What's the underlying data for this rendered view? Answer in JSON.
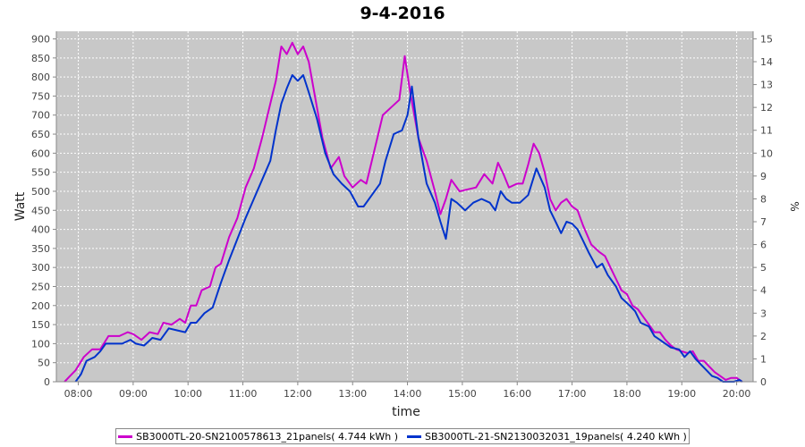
{
  "chart_data": {
    "type": "line",
    "title": "9-4-2016",
    "xlabel": "time",
    "ylabel": "Watt",
    "y2label": "%",
    "ylim": [
      0,
      920
    ],
    "y2lim": [
      0,
      15.33
    ],
    "xlim": [
      7.6,
      20.3
    ],
    "yticks": [
      0,
      50,
      100,
      150,
      200,
      250,
      300,
      350,
      400,
      450,
      500,
      550,
      600,
      650,
      700,
      750,
      800,
      850,
      900
    ],
    "y2ticks": [
      0,
      1,
      2,
      3,
      4,
      5,
      6,
      7,
      8,
      9,
      10,
      11,
      12,
      13,
      14,
      15
    ],
    "xticks": [
      8,
      9,
      10,
      11,
      12,
      13,
      14,
      15,
      16,
      17,
      18,
      19,
      20
    ],
    "xticklabels": [
      "08:00",
      "09:00",
      "10:00",
      "11:00",
      "12:00",
      "13:00",
      "14:00",
      "15:00",
      "16:00",
      "17:00",
      "18:00",
      "19:00",
      "20:00"
    ],
    "grid": true,
    "legend_position": "bottom",
    "series": [
      {
        "name": "SB3000TL-20-SN2100578613_21panels( 4.744 kWh )",
        "color": "#cc00cc",
        "points": [
          [
            7.75,
            0
          ],
          [
            7.85,
            15
          ],
          [
            7.95,
            30
          ],
          [
            8.1,
            65
          ],
          [
            8.25,
            85
          ],
          [
            8.4,
            85
          ],
          [
            8.55,
            120
          ],
          [
            8.75,
            120
          ],
          [
            8.9,
            130
          ],
          [
            9.0,
            125
          ],
          [
            9.15,
            110
          ],
          [
            9.3,
            130
          ],
          [
            9.45,
            125
          ],
          [
            9.55,
            155
          ],
          [
            9.7,
            150
          ],
          [
            9.85,
            165
          ],
          [
            9.95,
            155
          ],
          [
            10.05,
            200
          ],
          [
            10.15,
            200
          ],
          [
            10.25,
            240
          ],
          [
            10.4,
            250
          ],
          [
            10.5,
            300
          ],
          [
            10.6,
            310
          ],
          [
            10.75,
            380
          ],
          [
            10.9,
            430
          ],
          [
            11.05,
            510
          ],
          [
            11.2,
            560
          ],
          [
            11.35,
            640
          ],
          [
            11.5,
            730
          ],
          [
            11.6,
            790
          ],
          [
            11.7,
            880
          ],
          [
            11.8,
            860
          ],
          [
            11.9,
            890
          ],
          [
            12.0,
            860
          ],
          [
            12.1,
            880
          ],
          [
            12.2,
            840
          ],
          [
            12.3,
            760
          ],
          [
            12.45,
            640
          ],
          [
            12.6,
            560
          ],
          [
            12.75,
            590
          ],
          [
            12.85,
            540
          ],
          [
            13.0,
            510
          ],
          [
            13.15,
            530
          ],
          [
            13.25,
            520
          ],
          [
            13.4,
            610
          ],
          [
            13.55,
            700
          ],
          [
            13.7,
            720
          ],
          [
            13.85,
            740
          ],
          [
            13.95,
            855
          ],
          [
            14.05,
            760
          ],
          [
            14.2,
            640
          ],
          [
            14.35,
            580
          ],
          [
            14.5,
            500
          ],
          [
            14.6,
            440
          ],
          [
            14.7,
            480
          ],
          [
            14.8,
            530
          ],
          [
            14.95,
            500
          ],
          [
            15.1,
            505
          ],
          [
            15.25,
            510
          ],
          [
            15.4,
            545
          ],
          [
            15.55,
            520
          ],
          [
            15.65,
            575
          ],
          [
            15.75,
            545
          ],
          [
            15.85,
            510
          ],
          [
            16.0,
            520
          ],
          [
            16.1,
            520
          ],
          [
            16.2,
            570
          ],
          [
            16.3,
            625
          ],
          [
            16.4,
            600
          ],
          [
            16.5,
            550
          ],
          [
            16.6,
            480
          ],
          [
            16.7,
            450
          ],
          [
            16.8,
            470
          ],
          [
            16.9,
            480
          ],
          [
            17.0,
            460
          ],
          [
            17.1,
            450
          ],
          [
            17.2,
            410
          ],
          [
            17.35,
            360
          ],
          [
            17.5,
            340
          ],
          [
            17.6,
            330
          ],
          [
            17.7,
            300
          ],
          [
            17.8,
            270
          ],
          [
            17.9,
            240
          ],
          [
            18.0,
            230
          ],
          [
            18.1,
            200
          ],
          [
            18.2,
            190
          ],
          [
            18.3,
            170
          ],
          [
            18.4,
            150
          ],
          [
            18.5,
            130
          ],
          [
            18.6,
            130
          ],
          [
            18.7,
            110
          ],
          [
            18.8,
            95
          ],
          [
            18.9,
            85
          ],
          [
            19.0,
            80
          ],
          [
            19.1,
            75
          ],
          [
            19.2,
            80
          ],
          [
            19.3,
            55
          ],
          [
            19.4,
            55
          ],
          [
            19.5,
            40
          ],
          [
            19.6,
            25
          ],
          [
            19.7,
            15
          ],
          [
            19.8,
            5
          ],
          [
            19.9,
            10
          ],
          [
            20.0,
            10
          ],
          [
            20.1,
            0
          ]
        ]
      },
      {
        "name": "SB3000TL-21-SN2130032031_19panels( 4.240 kWh )",
        "color": "#0033cc",
        "points": [
          [
            7.95,
            0
          ],
          [
            8.05,
            20
          ],
          [
            8.15,
            55
          ],
          [
            8.3,
            65
          ],
          [
            8.4,
            80
          ],
          [
            8.5,
            100
          ],
          [
            8.65,
            100
          ],
          [
            8.8,
            100
          ],
          [
            8.95,
            110
          ],
          [
            9.05,
            100
          ],
          [
            9.2,
            95
          ],
          [
            9.35,
            115
          ],
          [
            9.5,
            110
          ],
          [
            9.65,
            140
          ],
          [
            9.8,
            135
          ],
          [
            9.95,
            130
          ],
          [
            10.05,
            155
          ],
          [
            10.15,
            155
          ],
          [
            10.3,
            180
          ],
          [
            10.45,
            195
          ],
          [
            10.6,
            260
          ],
          [
            10.75,
            320
          ],
          [
            10.9,
            375
          ],
          [
            11.05,
            430
          ],
          [
            11.2,
            480
          ],
          [
            11.35,
            530
          ],
          [
            11.5,
            580
          ],
          [
            11.6,
            660
          ],
          [
            11.7,
            730
          ],
          [
            11.8,
            770
          ],
          [
            11.9,
            805
          ],
          [
            12.0,
            790
          ],
          [
            12.1,
            805
          ],
          [
            12.2,
            760
          ],
          [
            12.35,
            690
          ],
          [
            12.5,
            600
          ],
          [
            12.65,
            545
          ],
          [
            12.8,
            520
          ],
          [
            12.95,
            500
          ],
          [
            13.1,
            460
          ],
          [
            13.2,
            460
          ],
          [
            13.35,
            490
          ],
          [
            13.5,
            520
          ],
          [
            13.6,
            580
          ],
          [
            13.75,
            650
          ],
          [
            13.9,
            660
          ],
          [
            14.0,
            700
          ],
          [
            14.08,
            775
          ],
          [
            14.2,
            640
          ],
          [
            14.35,
            520
          ],
          [
            14.5,
            470
          ],
          [
            14.6,
            420
          ],
          [
            14.7,
            375
          ],
          [
            14.8,
            480
          ],
          [
            14.9,
            470
          ],
          [
            15.05,
            450
          ],
          [
            15.2,
            470
          ],
          [
            15.35,
            480
          ],
          [
            15.5,
            470
          ],
          [
            15.6,
            450
          ],
          [
            15.7,
            500
          ],
          [
            15.8,
            480
          ],
          [
            15.9,
            470
          ],
          [
            16.05,
            470
          ],
          [
            16.2,
            490
          ],
          [
            16.35,
            560
          ],
          [
            16.5,
            510
          ],
          [
            16.6,
            450
          ],
          [
            16.7,
            420
          ],
          [
            16.8,
            390
          ],
          [
            16.9,
            420
          ],
          [
            17.0,
            415
          ],
          [
            17.1,
            400
          ],
          [
            17.2,
            370
          ],
          [
            17.3,
            340
          ],
          [
            17.45,
            300
          ],
          [
            17.55,
            310
          ],
          [
            17.65,
            280
          ],
          [
            17.8,
            250
          ],
          [
            17.9,
            220
          ],
          [
            18.05,
            200
          ],
          [
            18.15,
            185
          ],
          [
            18.25,
            155
          ],
          [
            18.4,
            145
          ],
          [
            18.5,
            120
          ],
          [
            18.6,
            110
          ],
          [
            18.7,
            100
          ],
          [
            18.8,
            90
          ],
          [
            18.95,
            85
          ],
          [
            19.05,
            65
          ],
          [
            19.15,
            80
          ],
          [
            19.25,
            60
          ],
          [
            19.35,
            45
          ],
          [
            19.45,
            30
          ],
          [
            19.55,
            15
          ],
          [
            19.65,
            10
          ],
          [
            19.75,
            0
          ],
          [
            19.85,
            0
          ],
          [
            19.95,
            0
          ],
          [
            20.05,
            5
          ],
          [
            20.1,
            0
          ]
        ]
      }
    ]
  },
  "legend": {
    "item1": "SB3000TL-20-SN2100578613_21panels( 4.744 kWh )",
    "item2": "SB3000TL-21-SN2130032031_19panels( 4.240 kWh )"
  }
}
